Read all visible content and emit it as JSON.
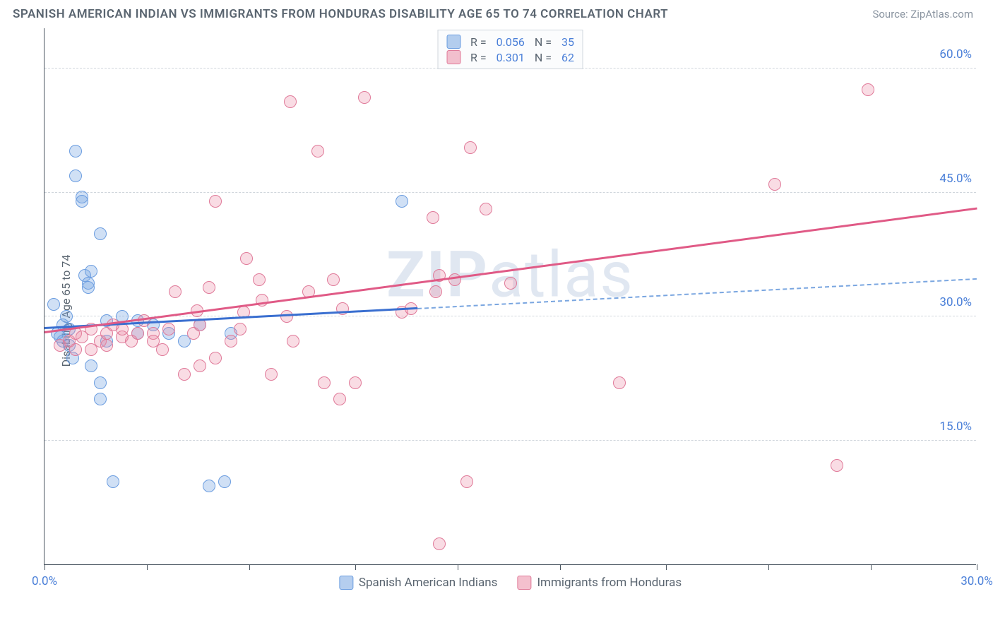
{
  "title": "SPANISH AMERICAN INDIAN VS IMMIGRANTS FROM HONDURAS DISABILITY AGE 65 TO 74 CORRELATION CHART",
  "source": "Source: ZipAtlas.com",
  "watermark": "ZIPatlas",
  "ylabel": "Disability Age 65 to 74",
  "chart": {
    "type": "scatter",
    "background_color": "#ffffff",
    "grid_color": "#d0d6dc",
    "axis_color": "#4a5560",
    "label_color": "#5a6570",
    "tick_label_color": "#4a7fd8",
    "font_size_title": 17,
    "font_size_ticks": 17,
    "font_size_axis": 16,
    "xlim": [
      0,
      30
    ],
    "ylim": [
      0,
      65
    ],
    "yticks": [
      15,
      30,
      45,
      60
    ],
    "ytick_labels": [
      "15.0%",
      "30.0%",
      "45.0%",
      "60.0%"
    ],
    "xticks": [
      0,
      3.3,
      6.6,
      10,
      13.3,
      16.6,
      20,
      23.3,
      26.6,
      30
    ],
    "xtick_labels": {
      "0": "0.0%",
      "30": "30.0%"
    },
    "marker_radius": 9,
    "marker_opacity": 0.35,
    "series": [
      {
        "name": "Spanish American Indians",
        "color": "#6b9de0",
        "fill": "rgba(120,165,225,0.35)",
        "R": 0.056,
        "N": 35,
        "trend": {
          "x1": 0,
          "y1": 28.5,
          "x2": 30,
          "y2": 34.5,
          "solid_until_x": 12,
          "line_width": 3
        },
        "points": [
          [
            0.4,
            28
          ],
          [
            0.5,
            27.5
          ],
          [
            0.6,
            29
          ],
          [
            0.6,
            27
          ],
          [
            0.7,
            30
          ],
          [
            0.8,
            26.5
          ],
          [
            0.8,
            28.5
          ],
          [
            0.9,
            25
          ],
          [
            1.0,
            47
          ],
          [
            1.0,
            50
          ],
          [
            1.2,
            44.5
          ],
          [
            1.2,
            44
          ],
          [
            1.3,
            35
          ],
          [
            1.4,
            34
          ],
          [
            1.4,
            33.5
          ],
          [
            1.5,
            35.5
          ],
          [
            1.5,
            24
          ],
          [
            1.8,
            22
          ],
          [
            1.8,
            20
          ],
          [
            1.8,
            40
          ],
          [
            2.0,
            29.5
          ],
          [
            2.0,
            27
          ],
          [
            2.2,
            10
          ],
          [
            2.5,
            30
          ],
          [
            3.0,
            28
          ],
          [
            3.0,
            29.5
          ],
          [
            3.5,
            29
          ],
          [
            4.0,
            28
          ],
          [
            4.5,
            27
          ],
          [
            5.0,
            29
          ],
          [
            5.3,
            9.5
          ],
          [
            5.8,
            10
          ],
          [
            6.0,
            28
          ],
          [
            11.5,
            44
          ],
          [
            0.3,
            31.5
          ]
        ]
      },
      {
        "name": "Immigrants from Honduras",
        "color": "#e07a99",
        "fill": "rgba(235,140,165,0.30)",
        "R": 0.301,
        "N": 62,
        "trend": {
          "x1": 0,
          "y1": 28,
          "x2": 30,
          "y2": 43,
          "line_width": 3
        },
        "points": [
          [
            0.5,
            26.5
          ],
          [
            0.8,
            27
          ],
          [
            1.0,
            28
          ],
          [
            1.0,
            26
          ],
          [
            1.2,
            27.5
          ],
          [
            1.5,
            28.5
          ],
          [
            1.5,
            26
          ],
          [
            1.8,
            27
          ],
          [
            2.0,
            28
          ],
          [
            2.0,
            26.5
          ],
          [
            2.2,
            29
          ],
          [
            2.5,
            27.5
          ],
          [
            2.5,
            28.5
          ],
          [
            2.8,
            27
          ],
          [
            3.0,
            28
          ],
          [
            3.2,
            29.5
          ],
          [
            3.5,
            28
          ],
          [
            3.5,
            27
          ],
          [
            3.8,
            26
          ],
          [
            4.0,
            28.5
          ],
          [
            4.2,
            33
          ],
          [
            4.5,
            23
          ],
          [
            4.8,
            28
          ],
          [
            5.0,
            24
          ],
          [
            5.0,
            29
          ],
          [
            5.3,
            33.5
          ],
          [
            5.5,
            25
          ],
          [
            5.5,
            44
          ],
          [
            6.0,
            27
          ],
          [
            6.3,
            28.5
          ],
          [
            6.5,
            37
          ],
          [
            6.9,
            34.5
          ],
          [
            7.0,
            32
          ],
          [
            7.3,
            23
          ],
          [
            7.8,
            30
          ],
          [
            7.9,
            56
          ],
          [
            8.0,
            27
          ],
          [
            8.5,
            33
          ],
          [
            8.8,
            50
          ],
          [
            9.0,
            22
          ],
          [
            9.3,
            34.5
          ],
          [
            9.5,
            20
          ],
          [
            9.6,
            31
          ],
          [
            10.0,
            22
          ],
          [
            10.3,
            56.5
          ],
          [
            11.5,
            30.5
          ],
          [
            11.8,
            31
          ],
          [
            12.5,
            42
          ],
          [
            12.6,
            33
          ],
          [
            12.7,
            35
          ],
          [
            12.7,
            2.5
          ],
          [
            13.2,
            34.5
          ],
          [
            13.6,
            10
          ],
          [
            13.7,
            50.5
          ],
          [
            14.2,
            43
          ],
          [
            15.0,
            34
          ],
          [
            18.5,
            22
          ],
          [
            23.5,
            46
          ],
          [
            25.5,
            12
          ],
          [
            26.5,
            57.5
          ],
          [
            6.4,
            30.5
          ],
          [
            4.9,
            30.7
          ]
        ]
      }
    ]
  },
  "legend_top": [
    {
      "swatch": "blue",
      "R_label": "R =",
      "R": "0.056",
      "N_label": "N =",
      "N": "35"
    },
    {
      "swatch": "pink",
      "R_label": "R =",
      "R": "0.301",
      "N_label": "N =",
      "N": "62"
    }
  ],
  "legend_bottom": [
    {
      "swatch": "blue",
      "label": "Spanish American Indians"
    },
    {
      "swatch": "pink",
      "label": "Immigrants from Honduras"
    }
  ]
}
